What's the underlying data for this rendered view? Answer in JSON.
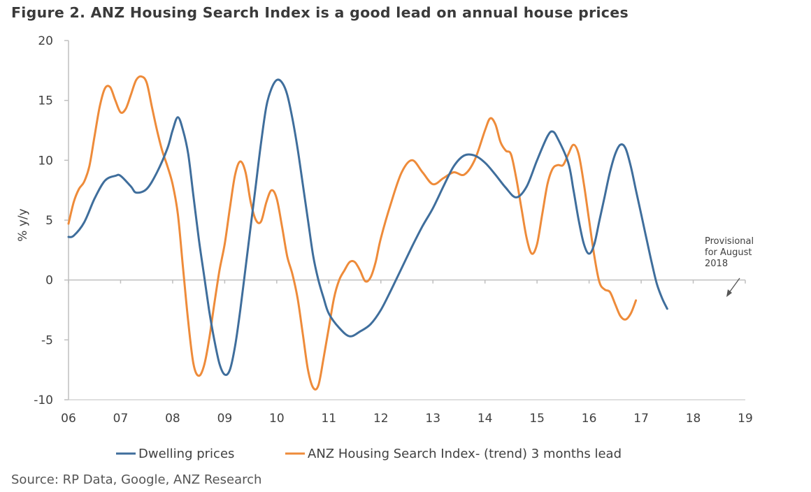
{
  "title": "Figure 2. ANZ Housing Search Index is a good lead on annual house prices",
  "source": "Source: RP Data, Google, ANZ Research",
  "colors": {
    "dwelling": "#3f6e9c",
    "search": "#ee8b3a",
    "axis": "#bfbfbf",
    "text": "#404040"
  },
  "chart_data": {
    "type": "line",
    "ylabel": "% y/y",
    "xlabel": "",
    "ylim": [
      -10,
      20
    ],
    "yticks": [
      -10,
      -5,
      0,
      5,
      10,
      15,
      20
    ],
    "xlim": [
      2006,
      2019
    ],
    "xticks": [
      {
        "value": 2006,
        "label": "06"
      },
      {
        "value": 2007,
        "label": "07"
      },
      {
        "value": 2008,
        "label": "08"
      },
      {
        "value": 2009,
        "label": "09"
      },
      {
        "value": 2010,
        "label": "10"
      },
      {
        "value": 2011,
        "label": "11"
      },
      {
        "value": 2012,
        "label": "12"
      },
      {
        "value": 2013,
        "label": "13"
      },
      {
        "value": 2014,
        "label": "14"
      },
      {
        "value": 2015,
        "label": "15"
      },
      {
        "value": 2016,
        "label": "16"
      },
      {
        "value": 2017,
        "label": "17"
      },
      {
        "value": 2018,
        "label": "18"
      },
      {
        "value": 2019,
        "label": "19"
      }
    ],
    "grid": false,
    "legend_position": "bottom",
    "annotation": {
      "text": [
        "Provisional",
        "for August",
        "2018"
      ]
    },
    "series": [
      {
        "name": "Dwelling prices",
        "color": "#3f6e9c",
        "points": [
          [
            2006.0,
            3.6
          ],
          [
            2006.1,
            3.7
          ],
          [
            2006.3,
            4.8
          ],
          [
            2006.5,
            6.8
          ],
          [
            2006.7,
            8.3
          ],
          [
            2006.9,
            8.7
          ],
          [
            2007.0,
            8.7
          ],
          [
            2007.2,
            7.8
          ],
          [
            2007.3,
            7.3
          ],
          [
            2007.5,
            7.6
          ],
          [
            2007.7,
            9.0
          ],
          [
            2007.9,
            11.0
          ],
          [
            2008.0,
            12.5
          ],
          [
            2008.1,
            13.6
          ],
          [
            2008.2,
            12.5
          ],
          [
            2008.3,
            10.5
          ],
          [
            2008.4,
            7.0
          ],
          [
            2008.5,
            3.5
          ],
          [
            2008.6,
            0.5
          ],
          [
            2008.7,
            -2.5
          ],
          [
            2008.8,
            -5.0
          ],
          [
            2008.9,
            -7.0
          ],
          [
            2009.0,
            -7.9
          ],
          [
            2009.1,
            -7.5
          ],
          [
            2009.2,
            -5.5
          ],
          [
            2009.3,
            -2.5
          ],
          [
            2009.4,
            1.0
          ],
          [
            2009.5,
            4.5
          ],
          [
            2009.6,
            8.0
          ],
          [
            2009.7,
            11.5
          ],
          [
            2009.8,
            14.5
          ],
          [
            2009.9,
            16.0
          ],
          [
            2010.0,
            16.7
          ],
          [
            2010.1,
            16.5
          ],
          [
            2010.2,
            15.5
          ],
          [
            2010.3,
            13.5
          ],
          [
            2010.4,
            11.0
          ],
          [
            2010.5,
            8.0
          ],
          [
            2010.6,
            5.0
          ],
          [
            2010.7,
            2.0
          ],
          [
            2010.8,
            0.0
          ],
          [
            2010.9,
            -1.5
          ],
          [
            2011.0,
            -2.8
          ],
          [
            2011.2,
            -4.0
          ],
          [
            2011.4,
            -4.7
          ],
          [
            2011.6,
            -4.3
          ],
          [
            2011.8,
            -3.7
          ],
          [
            2012.0,
            -2.5
          ],
          [
            2012.2,
            -0.8
          ],
          [
            2012.4,
            1.0
          ],
          [
            2012.6,
            2.8
          ],
          [
            2012.8,
            4.5
          ],
          [
            2013.0,
            6.0
          ],
          [
            2013.2,
            7.8
          ],
          [
            2013.4,
            9.5
          ],
          [
            2013.6,
            10.4
          ],
          [
            2013.8,
            10.4
          ],
          [
            2014.0,
            9.8
          ],
          [
            2014.2,
            8.8
          ],
          [
            2014.4,
            7.7
          ],
          [
            2014.6,
            6.9
          ],
          [
            2014.8,
            7.8
          ],
          [
            2015.0,
            10.0
          ],
          [
            2015.2,
            12.0
          ],
          [
            2015.3,
            12.4
          ],
          [
            2015.4,
            11.8
          ],
          [
            2015.6,
            9.8
          ],
          [
            2015.7,
            7.5
          ],
          [
            2015.8,
            5.0
          ],
          [
            2015.9,
            3.0
          ],
          [
            2016.0,
            2.2
          ],
          [
            2016.1,
            3.0
          ],
          [
            2016.2,
            5.0
          ],
          [
            2016.3,
            7.0
          ],
          [
            2016.4,
            9.0
          ],
          [
            2016.5,
            10.5
          ],
          [
            2016.6,
            11.3
          ],
          [
            2016.7,
            11.0
          ],
          [
            2016.8,
            9.5
          ],
          [
            2016.9,
            7.5
          ],
          [
            2017.0,
            5.5
          ],
          [
            2017.1,
            3.5
          ],
          [
            2017.2,
            1.5
          ],
          [
            2017.3,
            -0.3
          ],
          [
            2017.4,
            -1.5
          ],
          [
            2017.5,
            -2.4
          ]
        ]
      },
      {
        "name": "ANZ Housing Search Index- (trend) 3 months lead",
        "color": "#ee8b3a",
        "points": [
          [
            2006.0,
            4.7
          ],
          [
            2006.1,
            6.5
          ],
          [
            2006.2,
            7.6
          ],
          [
            2006.3,
            8.2
          ],
          [
            2006.4,
            9.5
          ],
          [
            2006.5,
            12.0
          ],
          [
            2006.6,
            14.5
          ],
          [
            2006.7,
            16.0
          ],
          [
            2006.8,
            16.1
          ],
          [
            2006.9,
            15.0
          ],
          [
            2007.0,
            14.0
          ],
          [
            2007.1,
            14.3
          ],
          [
            2007.2,
            15.5
          ],
          [
            2007.3,
            16.7
          ],
          [
            2007.4,
            17.0
          ],
          [
            2007.5,
            16.5
          ],
          [
            2007.6,
            14.5
          ],
          [
            2007.7,
            12.5
          ],
          [
            2007.8,
            10.8
          ],
          [
            2007.9,
            9.5
          ],
          [
            2008.0,
            8.0
          ],
          [
            2008.1,
            5.5
          ],
          [
            2008.2,
            1.0
          ],
          [
            2008.3,
            -3.5
          ],
          [
            2008.4,
            -7.0
          ],
          [
            2008.5,
            -8.0
          ],
          [
            2008.6,
            -7.2
          ],
          [
            2008.7,
            -5.0
          ],
          [
            2008.8,
            -2.0
          ],
          [
            2008.9,
            0.8
          ],
          [
            2009.0,
            3.0
          ],
          [
            2009.1,
            6.0
          ],
          [
            2009.2,
            8.8
          ],
          [
            2009.3,
            9.9
          ],
          [
            2009.4,
            9.0
          ],
          [
            2009.5,
            6.5
          ],
          [
            2009.6,
            5.0
          ],
          [
            2009.7,
            4.9
          ],
          [
            2009.8,
            6.5
          ],
          [
            2009.9,
            7.5
          ],
          [
            2010.0,
            6.8
          ],
          [
            2010.1,
            4.5
          ],
          [
            2010.2,
            2.0
          ],
          [
            2010.3,
            0.5
          ],
          [
            2010.4,
            -1.5
          ],
          [
            2010.5,
            -4.5
          ],
          [
            2010.6,
            -7.5
          ],
          [
            2010.7,
            -9.0
          ],
          [
            2010.8,
            -8.8
          ],
          [
            2010.9,
            -6.5
          ],
          [
            2011.0,
            -4.0
          ],
          [
            2011.1,
            -1.5
          ],
          [
            2011.2,
            0.0
          ],
          [
            2011.3,
            0.8
          ],
          [
            2011.4,
            1.5
          ],
          [
            2011.5,
            1.5
          ],
          [
            2011.6,
            0.8
          ],
          [
            2011.7,
            -0.1
          ],
          [
            2011.8,
            0.2
          ],
          [
            2011.9,
            1.5
          ],
          [
            2012.0,
            3.5
          ],
          [
            2012.2,
            6.5
          ],
          [
            2012.4,
            9.0
          ],
          [
            2012.6,
            10.0
          ],
          [
            2012.8,
            9.0
          ],
          [
            2013.0,
            8.0
          ],
          [
            2013.2,
            8.5
          ],
          [
            2013.4,
            9.0
          ],
          [
            2013.6,
            8.8
          ],
          [
            2013.8,
            10.0
          ],
          [
            2014.0,
            12.5
          ],
          [
            2014.1,
            13.5
          ],
          [
            2014.2,
            13.0
          ],
          [
            2014.3,
            11.5
          ],
          [
            2014.4,
            10.8
          ],
          [
            2014.5,
            10.5
          ],
          [
            2014.6,
            8.5
          ],
          [
            2014.7,
            6.0
          ],
          [
            2014.8,
            3.5
          ],
          [
            2014.9,
            2.2
          ],
          [
            2015.0,
            3.0
          ],
          [
            2015.1,
            5.5
          ],
          [
            2015.2,
            8.0
          ],
          [
            2015.3,
            9.3
          ],
          [
            2015.4,
            9.6
          ],
          [
            2015.5,
            9.6
          ],
          [
            2015.6,
            10.5
          ],
          [
            2015.7,
            11.3
          ],
          [
            2015.8,
            10.5
          ],
          [
            2015.9,
            8.0
          ],
          [
            2016.0,
            5.0
          ],
          [
            2016.1,
            2.0
          ],
          [
            2016.2,
            -0.2
          ],
          [
            2016.3,
            -0.8
          ],
          [
            2016.4,
            -1.0
          ],
          [
            2016.5,
            -2.0
          ],
          [
            2016.6,
            -3.0
          ],
          [
            2016.7,
            -3.3
          ],
          [
            2016.8,
            -2.8
          ],
          [
            2016.9,
            -1.7
          ]
        ]
      }
    ]
  }
}
